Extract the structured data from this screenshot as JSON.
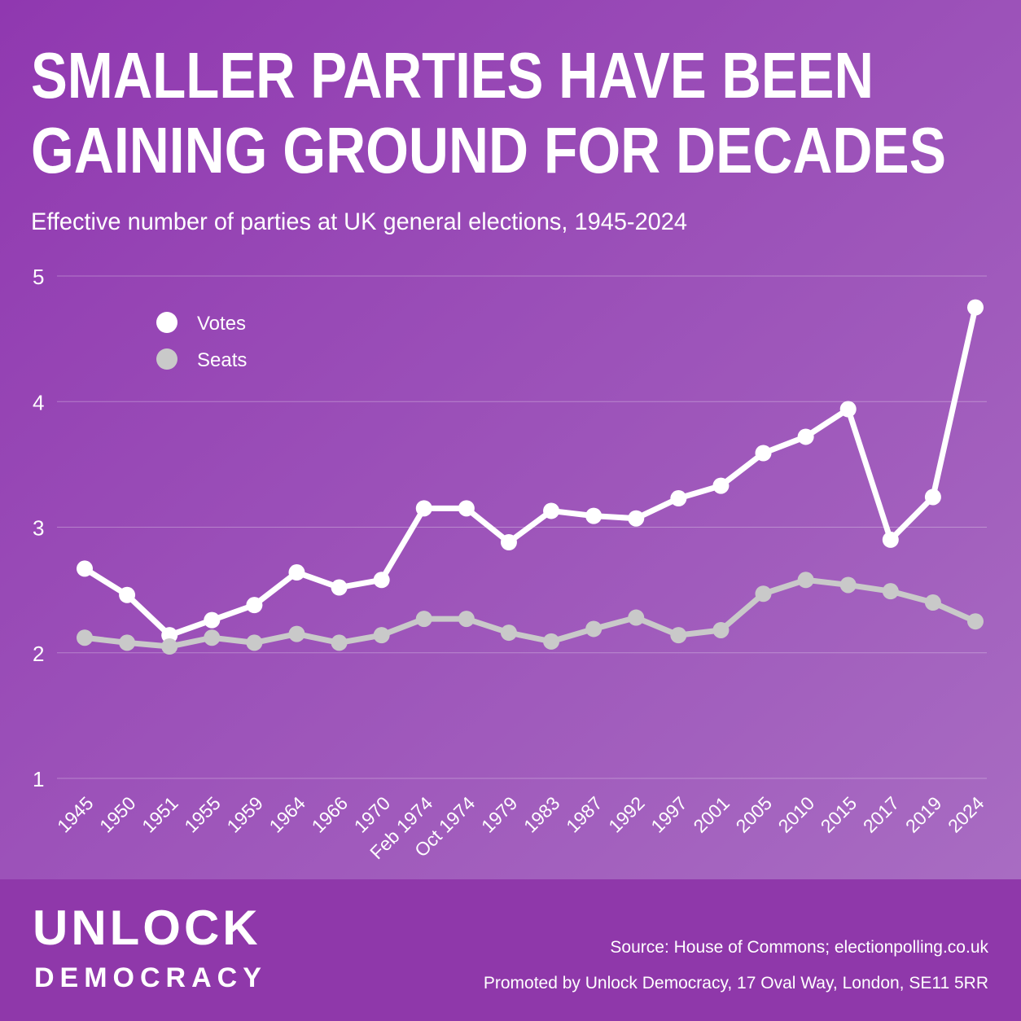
{
  "chart_data": {
    "type": "line",
    "title": [
      "SMALLER PARTIES HAVE BEEN",
      "GAINING GROUND FOR DECADES"
    ],
    "subtitle": "Effective number of parties at UK general elections, 1945-2024",
    "categories": [
      "1945",
      "1950",
      "1951",
      "1955",
      "1959",
      "1964",
      "1966",
      "1970",
      "Feb 1974",
      "Oct 1974",
      "1979",
      "1983",
      "1987",
      "1992",
      "1997",
      "2001",
      "2005",
      "2010",
      "2015",
      "2017",
      "2019",
      "2024"
    ],
    "series": [
      {
        "name": "Votes",
        "color": "#ffffff",
        "values": [
          2.67,
          2.46,
          2.14,
          2.26,
          2.38,
          2.64,
          2.52,
          2.58,
          3.15,
          3.15,
          2.88,
          3.13,
          3.09,
          3.07,
          3.23,
          3.33,
          3.59,
          3.72,
          3.94,
          2.9,
          3.24,
          4.75
        ]
      },
      {
        "name": "Seats",
        "color": "#c9c9c9",
        "values": [
          2.12,
          2.08,
          2.05,
          2.12,
          2.08,
          2.15,
          2.08,
          2.14,
          2.27,
          2.27,
          2.16,
          2.09,
          2.19,
          2.28,
          2.14,
          2.18,
          2.47,
          2.58,
          2.54,
          2.49,
          2.4,
          2.25
        ]
      }
    ],
    "ylim": [
      1,
      5
    ],
    "yticks": [
      1,
      2,
      3,
      4,
      5
    ],
    "grid": true,
    "legend": "top-left",
    "source": "Source: House of Commons; electionpolling.co.uk",
    "note": "Promoted by Unlock Democracy, 17 Oval Way, London, SE11 5RR"
  },
  "branding": {
    "line1": "UNLOCK",
    "line2": "DEMOCRACY"
  }
}
